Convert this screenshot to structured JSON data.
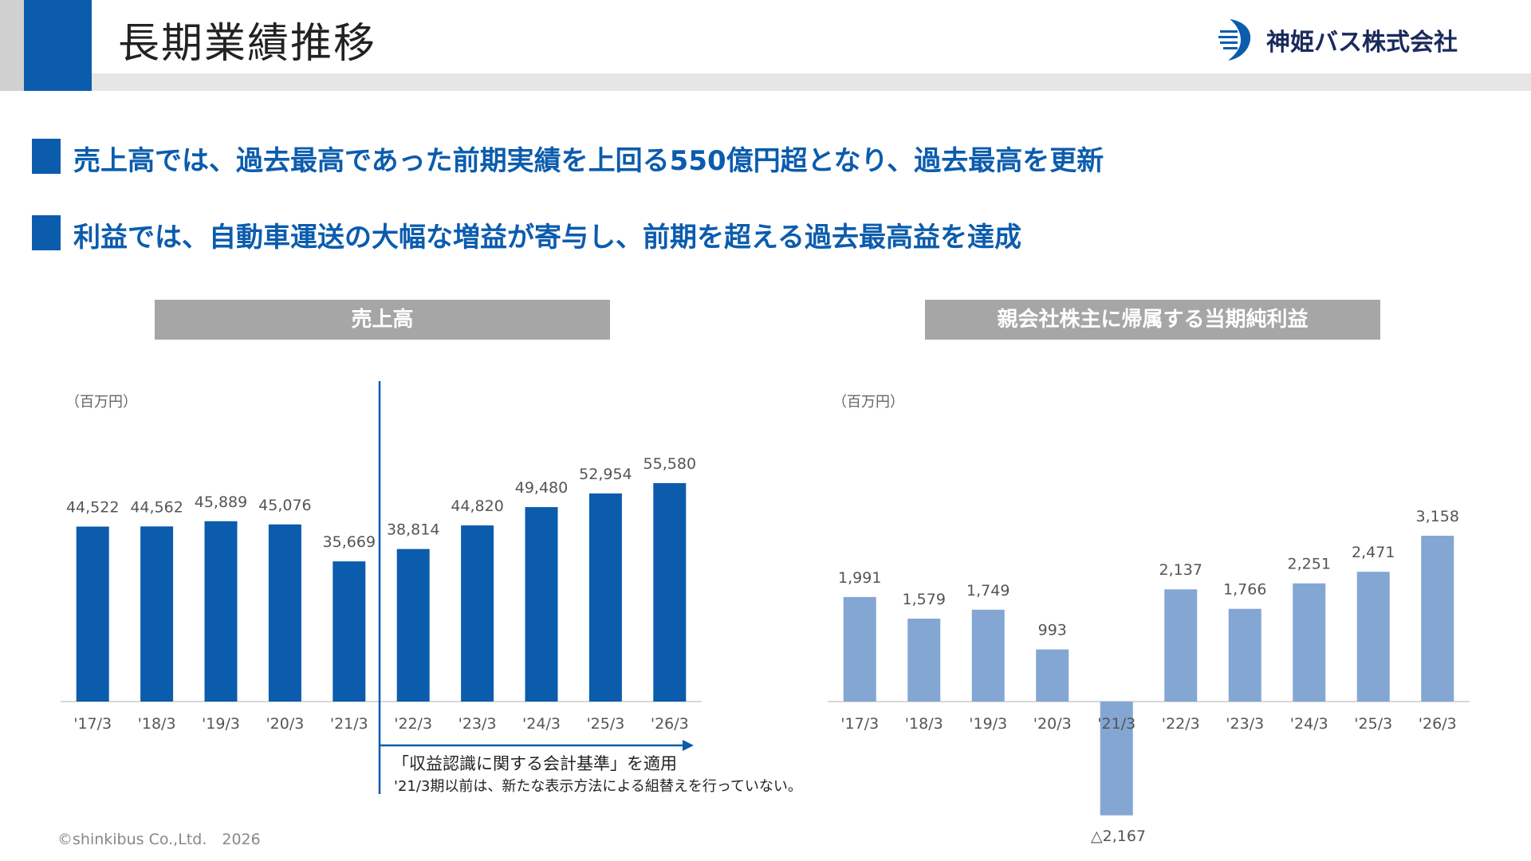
{
  "header": {
    "title": "長期業績推移"
  },
  "company": {
    "name": "神姫バス株式会社"
  },
  "bullets": [
    "売上高では、過去最高であった前期実績を上回る550億円超となり、過去最高を更新",
    "利益では、自動車運送の大幅な増益が寄与し、前期を超える過去最高益を達成"
  ],
  "footer": {
    "copyright": "©shinkibus Co.,Ltd.　2026"
  },
  "chart_data": [
    {
      "type": "bar",
      "title": "売上高",
      "unit": "（百万円）",
      "categories": [
        "'17/3",
        "'18/3",
        "'19/3",
        "'20/3",
        "'21/3",
        "'22/3",
        "'23/3",
        "'24/3",
        "'25/3",
        "'26/3"
      ],
      "values": [
        44522,
        44562,
        45889,
        45076,
        35669,
        38814,
        44820,
        49480,
        52954,
        55580
      ],
      "data_labels": [
        "44,522",
        "44,562",
        "45,889",
        "45,076",
        "35,669",
        "38,814",
        "44,820",
        "49,480",
        "52,954",
        "55,580"
      ],
      "color": "#0b5cad",
      "ylim": [
        0,
        62000
      ],
      "annotation": {
        "line1": "「収益認識に関する会計基準」を適用",
        "line2": "'21/3期以前は、新たな表示方法による組替えを行っていない。"
      }
    },
    {
      "type": "bar",
      "title": "親会社株主に帰属する当期純利益",
      "unit": "（百万円）",
      "categories": [
        "'17/3",
        "'18/3",
        "'19/3",
        "'20/3",
        "'21/3",
        "'22/3",
        "'23/3",
        "'24/3",
        "'25/3",
        "'26/3"
      ],
      "values": [
        1991,
        1579,
        1749,
        993,
        -2167,
        2137,
        1766,
        2251,
        2471,
        3158
      ],
      "data_labels": [
        "1,991",
        "1,579",
        "1,749",
        "993",
        "△2,167",
        "2,137",
        "1,766",
        "2,251",
        "2,471",
        "3,158"
      ],
      "color": "#84a6d3",
      "ylim": [
        -2300,
        3700
      ]
    }
  ]
}
